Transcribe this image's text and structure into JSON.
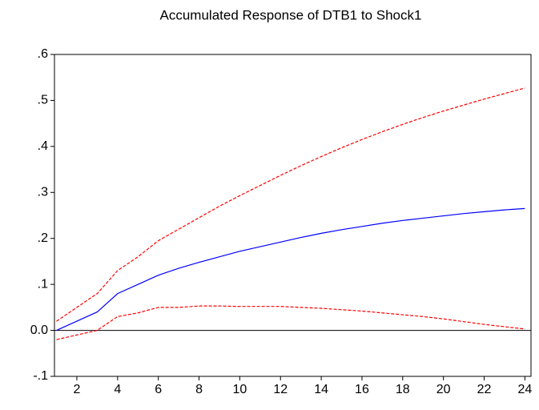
{
  "chart_data": {
    "type": "line",
    "title": "Accumulated Response of DTB1 to Shock1",
    "x": [
      1,
      2,
      3,
      4,
      5,
      6,
      7,
      8,
      9,
      10,
      11,
      12,
      13,
      14,
      15,
      16,
      17,
      18,
      19,
      20,
      21,
      22,
      23,
      24
    ],
    "series": [
      {
        "color": "#ff0000",
        "style": "dashed",
        "values": [
          0.02,
          0.05,
          0.08,
          0.13,
          0.16,
          0.195,
          0.22,
          0.245,
          0.27,
          0.293,
          0.315,
          0.337,
          0.358,
          0.378,
          0.397,
          0.415,
          0.432,
          0.448,
          0.463,
          0.477,
          0.49,
          0.503,
          0.515,
          0.527
        ]
      },
      {
        "color": "#0000ff",
        "style": "solid",
        "values": [
          0.0,
          0.02,
          0.04,
          0.08,
          0.1,
          0.12,
          0.135,
          0.148,
          0.16,
          0.172,
          0.182,
          0.192,
          0.202,
          0.211,
          0.219,
          0.226,
          0.233,
          0.239,
          0.244,
          0.249,
          0.254,
          0.258,
          0.262,
          0.265
        ]
      },
      {
        "color": "#ff0000",
        "style": "dashed",
        "values": [
          -0.02,
          -0.01,
          0.0,
          0.03,
          0.038,
          0.05,
          0.05,
          0.053,
          0.053,
          0.052,
          0.052,
          0.052,
          0.05,
          0.048,
          0.045,
          0.042,
          0.038,
          0.034,
          0.03,
          0.025,
          0.019,
          0.013,
          0.008,
          0.003
        ]
      }
    ],
    "xlim": [
      0.9,
      24.3
    ],
    "xticks": [
      2,
      4,
      6,
      8,
      10,
      12,
      14,
      16,
      18,
      20,
      22,
      24
    ],
    "ylim": [
      -0.1,
      0.6
    ],
    "yticks": [
      {
        "value": -0.1,
        "label": "-.1"
      },
      {
        "value": 0,
        "label": "0.0"
      },
      {
        "value": 0.1,
        "label": ".1"
      },
      {
        "value": 0.2,
        "label": ".2"
      },
      {
        "value": 0.3,
        "label": ".3"
      },
      {
        "value": 0.4,
        "label": ".4"
      },
      {
        "value": 0.5,
        "label": ".5"
      },
      {
        "value": 0.6,
        "label": ".6"
      }
    ],
    "hline": 0,
    "grid": false
  }
}
